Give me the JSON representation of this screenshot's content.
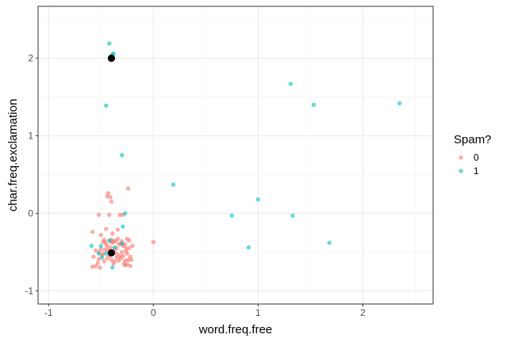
{
  "chart_data": {
    "type": "scatter",
    "xlabel": "word.freq.free",
    "ylabel": "char.freq.exclamation",
    "xlim": [
      -1.1,
      2.67
    ],
    "ylim": [
      -1.17,
      2.67
    ],
    "x_ticks": [
      -1,
      0,
      1,
      2
    ],
    "y_ticks": [
      -1,
      0,
      1,
      2
    ],
    "x_tick_labels": [
      "-1",
      "0",
      "1",
      "2"
    ],
    "y_tick_labels": [
      "-1",
      "0",
      "1",
      "2"
    ],
    "grid": true,
    "legend": {
      "title": "Spam?",
      "position": "right",
      "entries": [
        {
          "label": "0",
          "color": "#F8766D"
        },
        {
          "label": "1",
          "color": "#00BFC4"
        }
      ]
    },
    "series": [
      {
        "name": "0",
        "color": "#F8766D",
        "points": [
          [
            -0.58,
            -0.24
          ],
          [
            -0.52,
            -0.02
          ],
          [
            -0.5,
            -0.28
          ],
          [
            -0.47,
            -0.34
          ],
          [
            -0.46,
            -0.37
          ],
          [
            -0.45,
            -0.4
          ],
          [
            -0.44,
            0.22
          ],
          [
            -0.43,
            0.26
          ],
          [
            -0.41,
            0.21
          ],
          [
            -0.4,
            0.15
          ],
          [
            -0.42,
            -0.02
          ],
          [
            -0.4,
            -0.34
          ],
          [
            -0.38,
            -0.36
          ],
          [
            -0.37,
            -0.47
          ],
          [
            -0.35,
            -0.45
          ],
          [
            -0.34,
            -0.33
          ],
          [
            -0.33,
            -0.4
          ],
          [
            -0.31,
            -0.39
          ],
          [
            -0.29,
            -0.42
          ],
          [
            -0.27,
            -0.4
          ],
          [
            -0.25,
            -0.33
          ],
          [
            -0.23,
            -0.35
          ],
          [
            -0.24,
            0.32
          ],
          [
            -0.29,
            -0.02
          ],
          [
            -0.32,
            -0.02
          ],
          [
            -0.26,
            -0.49
          ],
          [
            -0.25,
            -0.52
          ],
          [
            -0.24,
            -0.6
          ],
          [
            -0.28,
            -0.65
          ],
          [
            -0.27,
            -0.67
          ],
          [
            -0.22,
            -0.68
          ],
          [
            -0.21,
            -0.6
          ],
          [
            -0.2,
            -0.42
          ],
          [
            -0.23,
            -0.45
          ],
          [
            -0.3,
            -0.5
          ],
          [
            -0.32,
            -0.55
          ],
          [
            -0.33,
            -0.61
          ],
          [
            -0.35,
            -0.57
          ],
          [
            -0.37,
            -0.62
          ],
          [
            -0.38,
            -0.65
          ],
          [
            -0.4,
            -0.6
          ],
          [
            -0.42,
            -0.55
          ],
          [
            -0.44,
            -0.58
          ],
          [
            -0.47,
            -0.62
          ],
          [
            -0.49,
            -0.54
          ],
          [
            -0.5,
            -0.46
          ],
          [
            -0.52,
            -0.5
          ],
          [
            -0.55,
            -0.48
          ],
          [
            -0.57,
            -0.56
          ],
          [
            -0.58,
            -0.69
          ],
          [
            -0.55,
            -0.68
          ],
          [
            -0.53,
            -0.64
          ],
          [
            -0.51,
            -0.7
          ],
          [
            -0.48,
            -0.37
          ],
          [
            -0.46,
            -0.47
          ],
          [
            -0.44,
            -0.43
          ],
          [
            -0.41,
            -0.44
          ],
          [
            -0.39,
            -0.38
          ],
          [
            -0.36,
            -0.36
          ],
          [
            -0.35,
            -0.52
          ],
          [
            -0.31,
            -0.58
          ],
          [
            -0.29,
            -0.55
          ],
          [
            -0.27,
            -0.61
          ],
          [
            -0.25,
            -0.66
          ],
          [
            -0.22,
            -0.56
          ],
          [
            -0.41,
            -0.36
          ],
          [
            -0.45,
            -0.2
          ],
          [
            -0.39,
            -0.26
          ],
          [
            -0.34,
            -0.21
          ],
          [
            0.0,
            -0.37
          ],
          [
            -0.52,
            -0.59
          ],
          [
            -0.48,
            -0.52
          ],
          [
            -0.43,
            -0.48
          ],
          [
            -0.3,
            -0.36
          ],
          [
            -0.26,
            -0.45
          ]
        ]
      },
      {
        "name": "1",
        "color": "#00BFC4",
        "points": [
          [
            -0.42,
            2.19
          ],
          [
            -0.39,
            2.05
          ],
          [
            -0.38,
            2.06
          ],
          [
            -0.4,
            2.03
          ],
          [
            -0.45,
            1.39
          ],
          [
            -0.3,
            0.75
          ],
          [
            0.19,
            0.37
          ],
          [
            1.0,
            0.18
          ],
          [
            0.75,
            -0.03
          ],
          [
            1.33,
            -0.03
          ],
          [
            0.91,
            -0.44
          ],
          [
            1.68,
            -0.38
          ],
          [
            1.31,
            1.67
          ],
          [
            1.53,
            1.4
          ],
          [
            2.35,
            1.42
          ],
          [
            -0.27,
            0.0
          ],
          [
            -0.29,
            -0.17
          ],
          [
            -0.59,
            -0.42
          ],
          [
            -0.52,
            -0.52
          ],
          [
            -0.5,
            -0.42
          ],
          [
            -0.42,
            -0.35
          ],
          [
            -0.39,
            -0.7
          ],
          [
            -0.3,
            -0.39
          ],
          [
            -0.45,
            -0.52
          ],
          [
            -0.37,
            -0.44
          ],
          [
            -0.49,
            -0.57
          ]
        ]
      }
    ],
    "centroids": [
      [
        -0.4,
        2.0
      ],
      [
        -0.4,
        -0.51
      ]
    ]
  }
}
